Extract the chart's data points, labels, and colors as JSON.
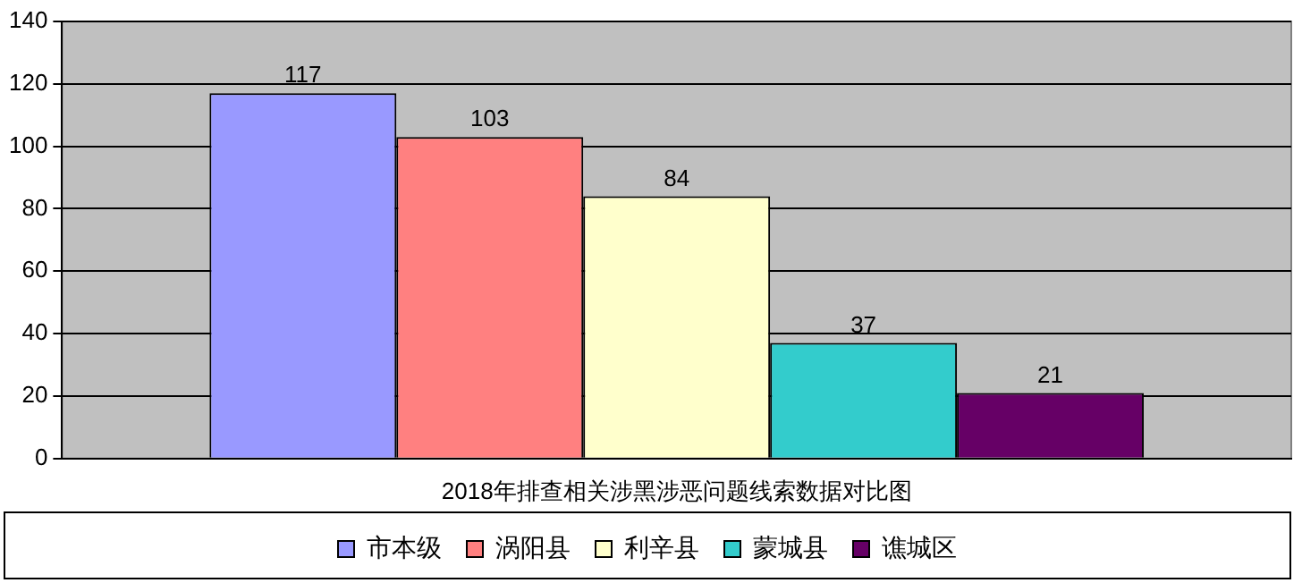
{
  "chart_data": {
    "type": "bar",
    "categories": [
      "2018年排查相关涉黑涉恶问题线索数据对比图"
    ],
    "series": [
      {
        "name": "市本级",
        "color": "#9999ff",
        "values": [
          117
        ]
      },
      {
        "name": "涡阳县",
        "color": "#ff8080",
        "values": [
          103
        ]
      },
      {
        "name": "利辛县",
        "color": "#ffffcc",
        "values": [
          84
        ]
      },
      {
        "name": "蒙城县",
        "color": "#33cccc",
        "values": [
          37
        ]
      },
      {
        "name": "谯城区",
        "color": "#660066",
        "values": [
          21
        ]
      }
    ],
    "ylim": [
      0,
      140
    ],
    "yticks": [
      0,
      20,
      40,
      60,
      80,
      100,
      120,
      140
    ],
    "grid": "y",
    "legend": "bottom",
    "data_labels": true
  }
}
